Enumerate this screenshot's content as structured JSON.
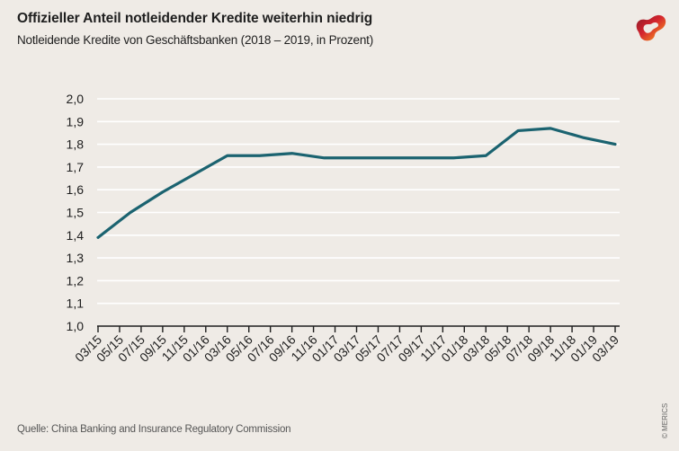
{
  "header": {
    "title": "Offizieller Anteil notleidender Kredite weiterhin niedrig",
    "subtitle": "Notleidende Kredite von Geschäftsbanken (2018 – 2019, in Prozent)"
  },
  "footer": {
    "source": "Quelle: China Banking and Insurance Regulatory Commission",
    "copyright": "© MERICS"
  },
  "logo": {
    "icon": "merics-logo-icon"
  },
  "colors": {
    "background": "#efebe6",
    "line": "#1b6370",
    "grid": "#ffffff",
    "axis": "#1e1e1e"
  },
  "chart_data": {
    "type": "line",
    "title": "Offizieller Anteil notleidender Kredite weiterhin niedrig",
    "subtitle": "Notleidende Kredite von Geschäftsbanken (2018 – 2019, in Prozent)",
    "xlabel": "",
    "ylabel": "",
    "ylim": [
      1.0,
      2.0
    ],
    "yticks": [
      "1,0",
      "1,1",
      "1,2",
      "1,3",
      "1,4",
      "1,5",
      "1,6",
      "1,7",
      "1,8",
      "1,9",
      "2,0"
    ],
    "ytick_values": [
      1.0,
      1.1,
      1.2,
      1.3,
      1.4,
      1.5,
      1.6,
      1.7,
      1.8,
      1.9,
      2.0
    ],
    "xticks": [
      "03/15",
      "05/15",
      "07/15",
      "09/15",
      "11/15",
      "01/16",
      "03/16",
      "05/16",
      "07/16",
      "09/16",
      "11/16",
      "01/17",
      "03/17",
      "05/17",
      "07/17",
      "09/17",
      "11/17",
      "01/18",
      "03/18",
      "05/18",
      "07/18",
      "09/18",
      "11/18",
      "01/19",
      "03/19"
    ],
    "grid": true,
    "legend": "none",
    "series": [
      {
        "name": "Notleidende Kredite (%)",
        "x_month_index": [
          0,
          3,
          6,
          9,
          12,
          15,
          18,
          21,
          24,
          27,
          30,
          33,
          36,
          39,
          42,
          45,
          48
        ],
        "x": [
          "03/15",
          "06/15",
          "09/15",
          "12/15",
          "03/16",
          "06/16",
          "09/16",
          "12/16",
          "03/17",
          "06/17",
          "09/17",
          "12/17",
          "03/18",
          "06/18",
          "09/18",
          "12/18",
          "03/19"
        ],
        "values": [
          1.39,
          1.5,
          1.59,
          1.67,
          1.75,
          1.75,
          1.76,
          1.74,
          1.74,
          1.74,
          1.74,
          1.74,
          1.75,
          1.86,
          1.87,
          1.83,
          1.8
        ]
      }
    ]
  }
}
